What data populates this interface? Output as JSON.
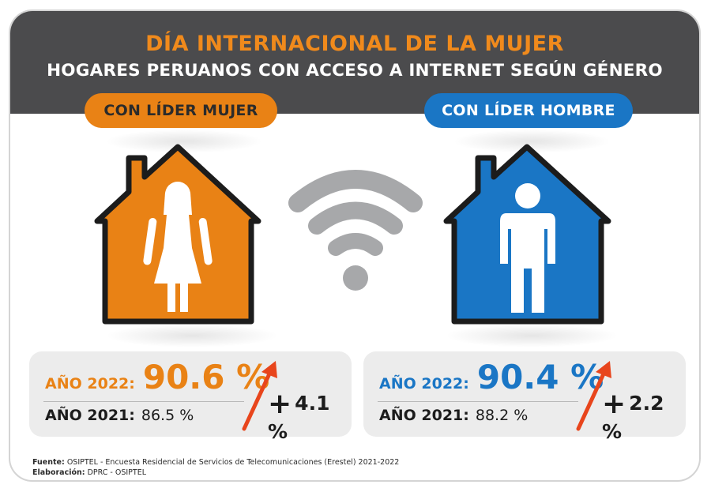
{
  "header": {
    "title": "DÍA INTERNACIONAL DE LA MUJER",
    "subtitle": "HOGARES PERUANOS CON ACCESO A INTERNET SEGÚN GÉNERO"
  },
  "women": {
    "label": "CON LÍDER MUJER",
    "color": "#e98215",
    "year2022_label": "AÑO 2022:",
    "year2022_value": "90.6 %",
    "year2021_label": "AÑO 2021:",
    "year2021_value": "86.5 %",
    "delta": "4.1 %"
  },
  "men": {
    "label": "CON LÍDER HOMBRE",
    "color": "#1a76c5",
    "year2022_label": "AÑO 2022:",
    "year2022_value": "90.4 %",
    "year2021_label": "AÑO 2021:",
    "year2021_value": "88.2 %",
    "delta": "2.2 %"
  },
  "icons": [
    "house-woman-icon",
    "wifi-icon",
    "house-man-icon",
    "arrow-up-icon"
  ],
  "footer": {
    "source_label": "Fuente:",
    "source_text": "OSIPTEL - Encuesta Residencial de Servicios de Telecomunicaciones (Erestel) 2021-2022",
    "credit_label": "Elaboración:",
    "credit_text": "DPRC - OSIPTEL"
  }
}
